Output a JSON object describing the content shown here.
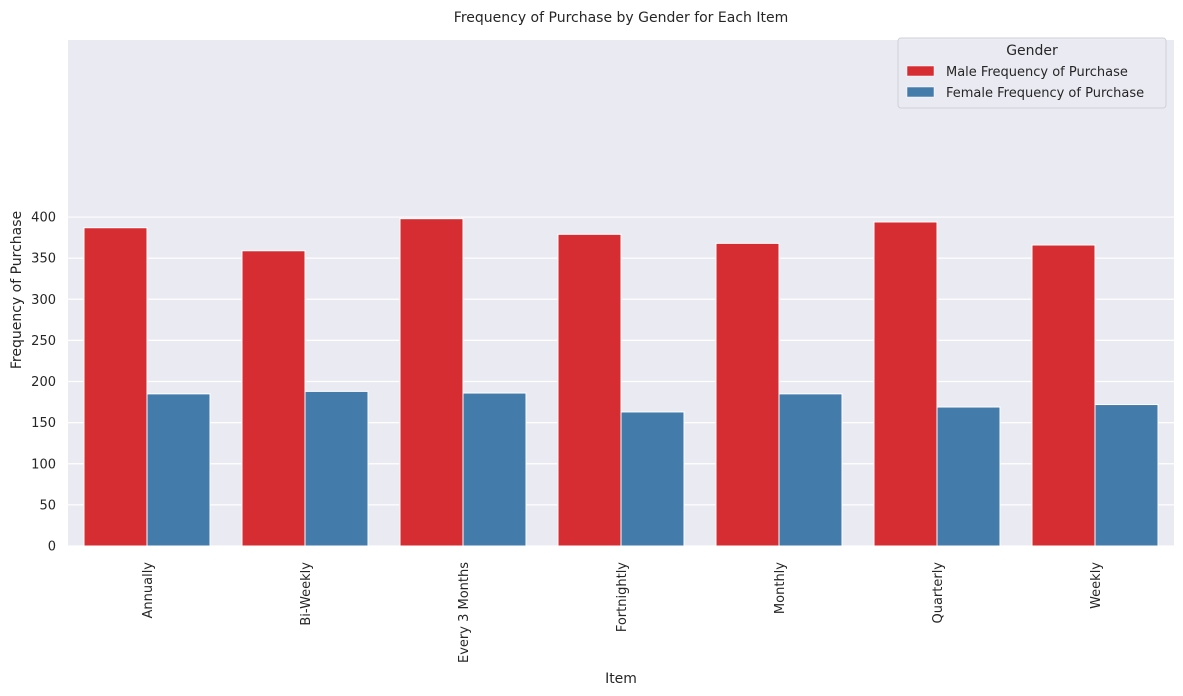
{
  "chart_data": {
    "type": "bar",
    "title": "Frequency of Purchase by Gender for Each Item",
    "xlabel": "Item",
    "ylabel": "Frequency of Purchase",
    "ylim": [
      0,
      420
    ],
    "yticks": [
      0,
      50,
      100,
      150,
      200,
      250,
      300,
      350,
      400
    ],
    "grid": true,
    "legend_title": "Gender",
    "legend_position": "top-right",
    "categories": [
      "Annually",
      "Bi-Weekly",
      "Every 3 Months",
      "Fortnightly",
      "Monthly",
      "Quarterly",
      "Weekly"
    ],
    "series": [
      {
        "name": "Male Frequency of Purchase",
        "color": "#d62d32",
        "values": [
          387,
          359,
          398,
          379,
          368,
          394,
          366
        ]
      },
      {
        "name": "Female Frequency of Purchase",
        "color": "#437bab",
        "values": [
          185,
          188,
          186,
          163,
          185,
          169,
          172
        ]
      }
    ],
    "plot_background": "#eaeaf2"
  }
}
